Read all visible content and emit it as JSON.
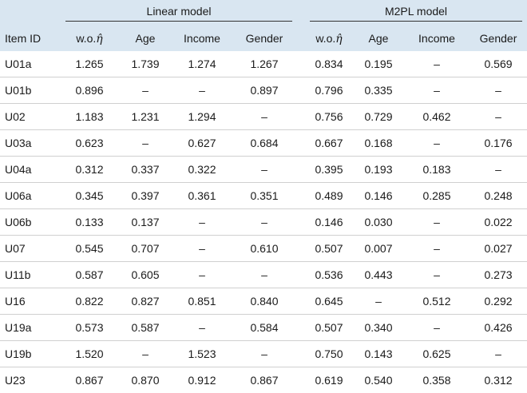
{
  "header": {
    "group_linear": "Linear model",
    "group_m2pl": "M2PL model",
    "col_item": "Item ID",
    "col_wo_prefix": "w.o.",
    "col_wo_symbol": "η̂",
    "col_age": "Age",
    "col_income": "Income",
    "col_gender": "Gender"
  },
  "rows": [
    {
      "id": "U01a",
      "lin": [
        "1.265",
        "1.739",
        "1.274",
        "1.267"
      ],
      "m2pl": [
        "0.834",
        "0.195",
        "–",
        "0.569"
      ]
    },
    {
      "id": "U01b",
      "lin": [
        "0.896",
        "–",
        "–",
        "0.897"
      ],
      "m2pl": [
        "0.796",
        "0.335",
        "–",
        "–"
      ]
    },
    {
      "id": "U02",
      "lin": [
        "1.183",
        "1.231",
        "1.294",
        "–"
      ],
      "m2pl": [
        "0.756",
        "0.729",
        "0.462",
        "–"
      ]
    },
    {
      "id": "U03a",
      "lin": [
        "0.623",
        "–",
        "0.627",
        "0.684"
      ],
      "m2pl": [
        "0.667",
        "0.168",
        "–",
        "0.176"
      ]
    },
    {
      "id": "U04a",
      "lin": [
        "0.312",
        "0.337",
        "0.322",
        "–"
      ],
      "m2pl": [
        "0.395",
        "0.193",
        "0.183",
        "–"
      ]
    },
    {
      "id": "U06a",
      "lin": [
        "0.345",
        "0.397",
        "0.361",
        "0.351"
      ],
      "m2pl": [
        "0.489",
        "0.146",
        "0.285",
        "0.248"
      ]
    },
    {
      "id": "U06b",
      "lin": [
        "0.133",
        "0.137",
        "–",
        "–"
      ],
      "m2pl": [
        "0.146",
        "0.030",
        "–",
        "0.022"
      ]
    },
    {
      "id": "U07",
      "lin": [
        "0.545",
        "0.707",
        "–",
        "0.610"
      ],
      "m2pl": [
        "0.507",
        "0.007",
        "–",
        "0.027"
      ]
    },
    {
      "id": "U11b",
      "lin": [
        "0.587",
        "0.605",
        "–",
        "–"
      ],
      "m2pl": [
        "0.536",
        "0.443",
        "–",
        "0.273"
      ]
    },
    {
      "id": "U16",
      "lin": [
        "0.822",
        "0.827",
        "0.851",
        "0.840"
      ],
      "m2pl": [
        "0.645",
        "–",
        "0.512",
        "0.292"
      ]
    },
    {
      "id": "U19a",
      "lin": [
        "0.573",
        "0.587",
        "–",
        "0.584"
      ],
      "m2pl": [
        "0.507",
        "0.340",
        "–",
        "0.426"
      ]
    },
    {
      "id": "U19b",
      "lin": [
        "1.520",
        "–",
        "1.523",
        "–"
      ],
      "m2pl": [
        "0.750",
        "0.143",
        "0.625",
        "–"
      ]
    },
    {
      "id": "U23",
      "lin": [
        "0.867",
        "0.870",
        "0.912",
        "0.867"
      ],
      "m2pl": [
        "0.619",
        "0.540",
        "0.358",
        "0.312"
      ]
    }
  ]
}
